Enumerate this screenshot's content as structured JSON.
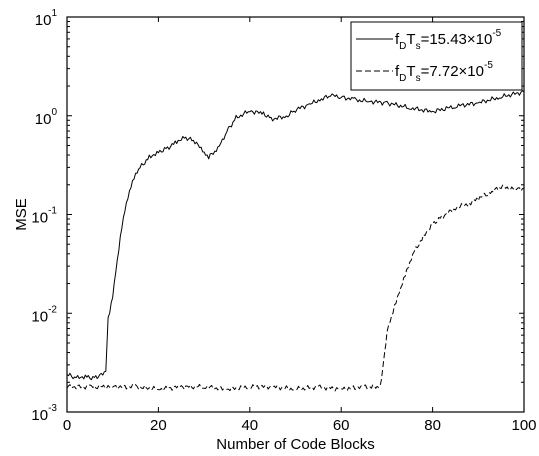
{
  "chart_data": {
    "type": "line",
    "xlabel": "Number of Code Blocks",
    "ylabel": "MSE",
    "xlim": [
      0,
      100
    ],
    "ylim": [
      0.001,
      10
    ],
    "yscale": "log",
    "grid": false,
    "legend_position": "top-right",
    "x_ticks": [
      "0",
      "20",
      "40",
      "60",
      "80",
      "100"
    ],
    "y_ticks": [
      {
        "base": "10",
        "exp": "-3",
        "value": 0.001
      },
      {
        "base": "10",
        "exp": "-2",
        "value": 0.01
      },
      {
        "base": "10",
        "exp": "-1",
        "value": 0.1
      },
      {
        "base": "10",
        "exp": "0",
        "value": 1
      },
      {
        "base": "10",
        "exp": "1",
        "value": 10
      }
    ],
    "series": [
      {
        "legend": {
          "f": "f",
          "fsub": "D",
          "t": "T",
          "tsub": "s",
          "value": "=15.43×10",
          "exp": "-5"
        },
        "style": "solid",
        "color": "#000000",
        "x": [
          0,
          2,
          4,
          6,
          7.5,
          8.5,
          9,
          10,
          11,
          12,
          13,
          14,
          15,
          16,
          18,
          20,
          22,
          24,
          26,
          28,
          30,
          31,
          33,
          35,
          37,
          40,
          43,
          45,
          48,
          50,
          53,
          56,
          58,
          60,
          63,
          66,
          70,
          75,
          80,
          85,
          90,
          95,
          100
        ],
        "y": [
          0.0024,
          0.0022,
          0.0023,
          0.0022,
          0.0024,
          0.0026,
          0.009,
          0.015,
          0.035,
          0.075,
          0.13,
          0.19,
          0.25,
          0.3,
          0.38,
          0.43,
          0.47,
          0.55,
          0.6,
          0.55,
          0.42,
          0.38,
          0.46,
          0.7,
          0.95,
          1.12,
          1.05,
          0.93,
          0.98,
          1.15,
          1.3,
          1.5,
          1.6,
          1.55,
          1.45,
          1.4,
          1.35,
          1.2,
          1.1,
          1.25,
          1.35,
          1.55,
          1.75
        ]
      },
      {
        "legend": {
          "f": "f",
          "fsub": "D",
          "t": "T",
          "tsub": "s",
          "value": "=7.72×10",
          "exp": "-5"
        },
        "style": "dashed",
        "color": "#000000",
        "x": [
          0,
          5,
          10,
          15,
          20,
          25,
          30,
          35,
          40,
          45,
          50,
          55,
          60,
          65,
          68.5,
          69,
          69.5,
          70,
          71,
          72,
          73,
          74,
          75,
          76,
          78,
          80,
          82,
          85,
          88,
          90,
          93,
          95,
          98,
          100
        ],
        "y": [
          0.0018,
          0.0018,
          0.0018,
          0.0018,
          0.0017,
          0.0018,
          0.0018,
          0.0017,
          0.0018,
          0.0018,
          0.0017,
          0.0018,
          0.0017,
          0.0018,
          0.0018,
          0.0025,
          0.004,
          0.0065,
          0.0095,
          0.013,
          0.018,
          0.024,
          0.032,
          0.042,
          0.06,
          0.08,
          0.095,
          0.115,
          0.13,
          0.145,
          0.17,
          0.19,
          0.18,
          0.185
        ]
      }
    ]
  }
}
